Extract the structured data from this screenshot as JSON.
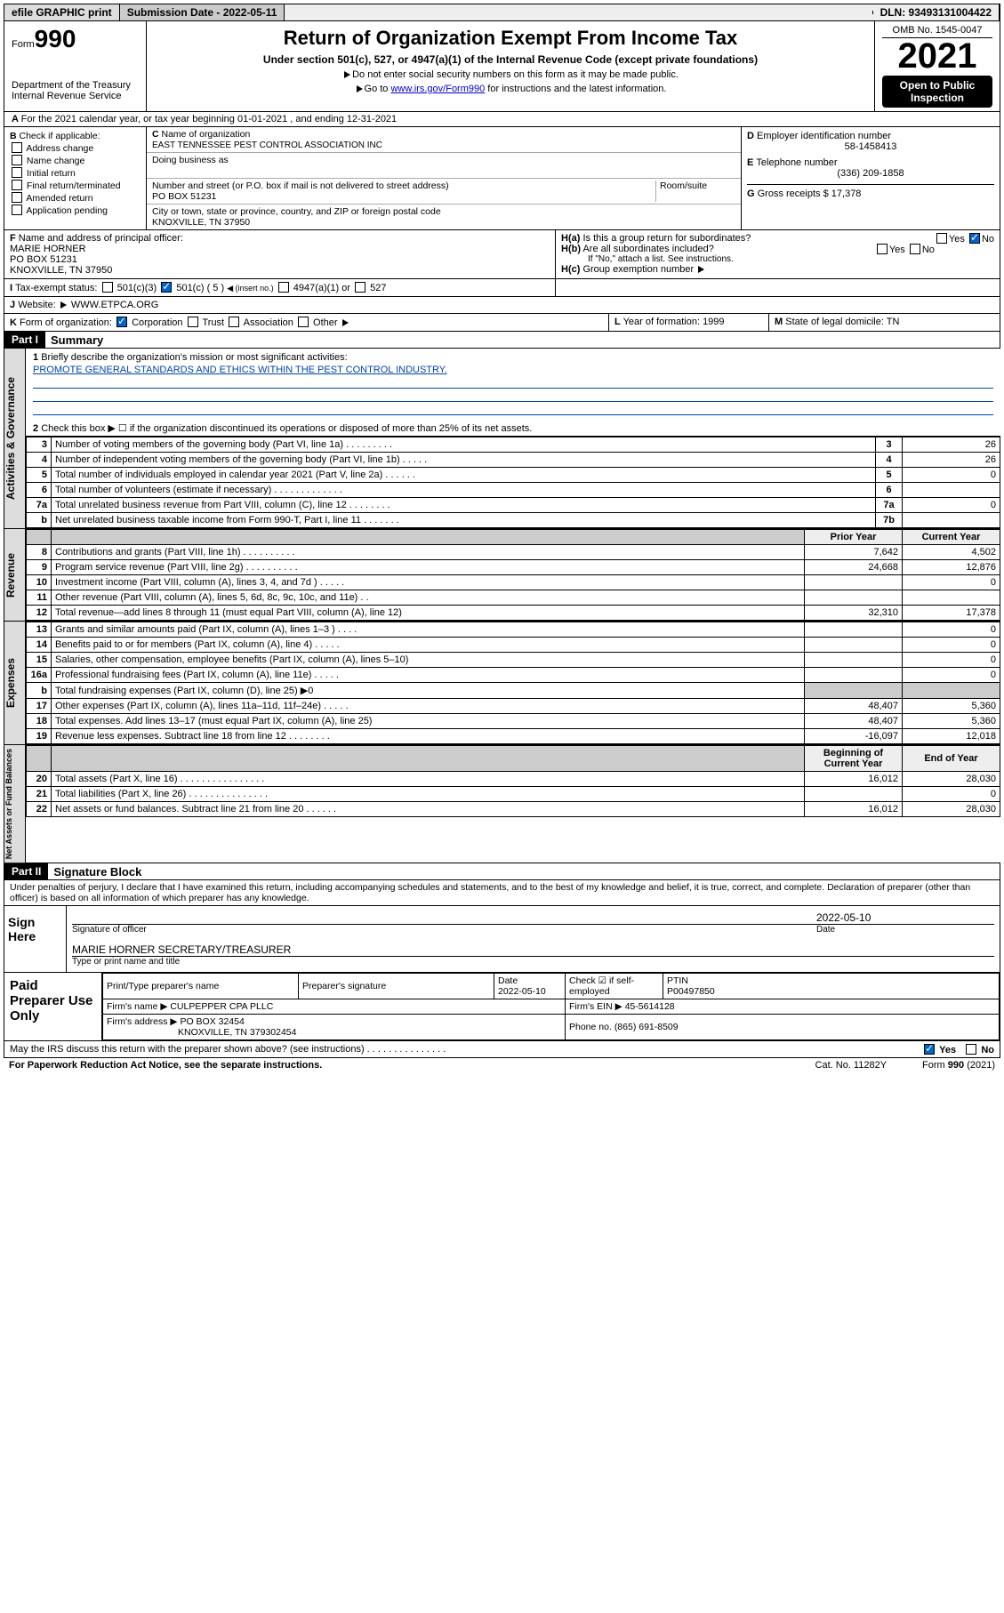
{
  "header": {
    "efile": "efile GRAPHIC print",
    "subm": "Submission Date - 2022-05-11",
    "dln": "DLN: 93493131004422"
  },
  "top": {
    "form_word": "Form",
    "form_no": "990",
    "title": "Return of Organization Exempt From Income Tax",
    "sub": "Under section 501(c), 527, or 4947(a)(1) of the Internal Revenue Code (except private foundations)",
    "hint1": "Do not enter social security numbers on this form as it may be made public.",
    "hint2a": "Go to ",
    "hint2_link": "www.irs.gov/Form990",
    "hint2b": " for instructions and the latest information.",
    "dept": "Department of the Treasury",
    "irs": "Internal Revenue Service",
    "omb": "OMB No. 1545-0047",
    "year": "2021",
    "open": "Open to Public Inspection"
  },
  "A": {
    "text": "For the 2021 calendar year, or tax year beginning 01-01-2021   , and ending 12-31-2021"
  },
  "B": {
    "hdr": "Check if applicable:",
    "opts": [
      "Address change",
      "Name change",
      "Initial return",
      "Final return/terminated",
      "Amended return",
      "Application pending"
    ]
  },
  "C": {
    "name_lbl": "Name of organization",
    "name": "EAST TENNESSEE PEST CONTROL ASSOCIATION INC",
    "dba_lbl": "Doing business as",
    "street_lbl": "Number and street (or P.O. box if mail is not delivered to street address)",
    "room_lbl": "Room/suite",
    "street": "PO BOX 51231",
    "city_lbl": "City or town, state or province, country, and ZIP or foreign postal code",
    "city": "KNOXVILLE, TN  37950"
  },
  "D": {
    "lbl": "Employer identification number",
    "val": "58-1458413"
  },
  "E": {
    "lbl": "Telephone number",
    "val": "(336) 209-1858"
  },
  "G": {
    "lbl": "Gross receipts $",
    "val": "17,378"
  },
  "F": {
    "lbl": "Name and address of principal officer:",
    "name": "MARIE HORNER",
    "street": "PO BOX 51231",
    "city": "KNOXVILLE, TN  37950"
  },
  "H": {
    "a": "Is this a group return for subordinates?",
    "b": "Are all subordinates included?",
    "b_hint": "If \"No,\" attach a list. See instructions.",
    "c": "Group exemption number"
  },
  "I": {
    "lbl": "Tax-exempt status:",
    "o1": "501(c)(3)",
    "o2": "501(c) ( 5 )",
    "o2_hint": "(insert no.)",
    "o3": "4947(a)(1) or",
    "o4": "527"
  },
  "J": {
    "lbl": "Website:",
    "val": "WWW.ETPCA.ORG"
  },
  "K": {
    "lbl": "Form of organization:",
    "opts": [
      "Corporation",
      "Trust",
      "Association",
      "Other"
    ]
  },
  "L": {
    "lbl": "Year of formation:",
    "val": "1999"
  },
  "M": {
    "lbl": "State of legal domicile:",
    "val": "TN"
  },
  "part1": {
    "hdr": "Part I",
    "title": "Summary",
    "q1": "Briefly describe the organization's mission or most significant activities:",
    "q1_ans": "PROMOTE GENERAL STANDARDS AND ETHICS WITHIN THE PEST CONTROL INDUSTRY.",
    "q2": "Check this box ▶ ☐ if the organization discontinued its operations or disposed of more than 25% of its net assets.",
    "strip_ag": "Activities & Governance",
    "strip_rev": "Revenue",
    "strip_exp": "Expenses",
    "strip_net": "Net Assets or Fund Balances",
    "hdr_prior": "Prior Year",
    "hdr_curr": "Current Year",
    "hdr_beg": "Beginning of Current Year",
    "hdr_end": "End of Year",
    "rows_ag": [
      {
        "n": "3",
        "t": "Number of voting members of the governing body (Part VI, line 1a)  .  .  .  .  .  .  .  .  .",
        "box": "3",
        "v": "26"
      },
      {
        "n": "4",
        "t": "Number of independent voting members of the governing body (Part VI, line 1b)  .  .  .  .  .",
        "box": "4",
        "v": "26"
      },
      {
        "n": "5",
        "t": "Total number of individuals employed in calendar year 2021 (Part V, line 2a)  .  .  .  .  .  .",
        "box": "5",
        "v": "0"
      },
      {
        "n": "6",
        "t": "Total number of volunteers (estimate if necessary)  .  .  .  .  .  .  .  .  .  .  .  .  .",
        "box": "6",
        "v": ""
      },
      {
        "n": "7a",
        "t": "Total unrelated business revenue from Part VIII, column (C), line 12  .  .  .  .  .  .  .  .",
        "box": "7a",
        "v": "0"
      },
      {
        "n": "b",
        "t": "Net unrelated business taxable income from Form 990-T, Part I, line 11  .  .  .  .  .  .  .",
        "box": "7b",
        "v": ""
      }
    ],
    "rows_rev": [
      {
        "n": "8",
        "t": "Contributions and grants (Part VIII, line 1h)  .  .  .  .  .  .  .  .  .  .",
        "p": "7,642",
        "c": "4,502"
      },
      {
        "n": "9",
        "t": "Program service revenue (Part VIII, line 2g)  .  .  .  .  .  .  .  .  .  .",
        "p": "24,668",
        "c": "12,876"
      },
      {
        "n": "10",
        "t": "Investment income (Part VIII, column (A), lines 3, 4, and 7d )  .  .  .  .  .",
        "p": "",
        "c": "0"
      },
      {
        "n": "11",
        "t": "Other revenue (Part VIII, column (A), lines 5, 6d, 8c, 9c, 10c, and 11e)  .  .",
        "p": "",
        "c": ""
      },
      {
        "n": "12",
        "t": "Total revenue—add lines 8 through 11 (must equal Part VIII, column (A), line 12)",
        "p": "32,310",
        "c": "17,378"
      }
    ],
    "rows_exp": [
      {
        "n": "13",
        "t": "Grants and similar amounts paid (Part IX, column (A), lines 1–3 )  .  .  .  .",
        "p": "",
        "c": "0"
      },
      {
        "n": "14",
        "t": "Benefits paid to or for members (Part IX, column (A), line 4)  .  .  .  .  .",
        "p": "",
        "c": "0"
      },
      {
        "n": "15",
        "t": "Salaries, other compensation, employee benefits (Part IX, column (A), lines 5–10)",
        "p": "",
        "c": "0"
      },
      {
        "n": "16a",
        "t": "Professional fundraising fees (Part IX, column (A), line 11e)  .  .  .  .  .",
        "p": "",
        "c": "0"
      },
      {
        "n": "b",
        "t": "Total fundraising expenses (Part IX, column (D), line 25) ▶0",
        "p": "SHADE",
        "c": "SHADE"
      },
      {
        "n": "17",
        "t": "Other expenses (Part IX, column (A), lines 11a–11d, 11f–24e)  .  .  .  .  .",
        "p": "48,407",
        "c": "5,360"
      },
      {
        "n": "18",
        "t": "Total expenses. Add lines 13–17 (must equal Part IX, column (A), line 25)",
        "p": "48,407",
        "c": "5,360"
      },
      {
        "n": "19",
        "t": "Revenue less expenses. Subtract line 18 from line 12  .  .  .  .  .  .  .  .",
        "p": "-16,097",
        "c": "12,018"
      }
    ],
    "rows_net": [
      {
        "n": "20",
        "t": "Total assets (Part X, line 16)  .  .  .  .  .  .  .  .  .  .  .  .  .  .  .  .",
        "p": "16,012",
        "c": "28,030"
      },
      {
        "n": "21",
        "t": "Total liabilities (Part X, line 26)  .  .  .  .  .  .  .  .  .  .  .  .  .  .  .",
        "p": "",
        "c": "0"
      },
      {
        "n": "22",
        "t": "Net assets or fund balances. Subtract line 21 from line 20  .  .  .  .  .  .",
        "p": "16,012",
        "c": "28,030"
      }
    ]
  },
  "part2": {
    "hdr": "Part II",
    "title": "Signature Block",
    "decl": "Under penalties of perjury, I declare that I have examined this return, including accompanying schedules and statements, and to the best of my knowledge and belief, it is true, correct, and complete. Declaration of preparer (other than officer) is based on all information of which preparer has any knowledge.",
    "sign_here": "Sign Here",
    "sig_officer": "Signature of officer",
    "sig_date": "2022-05-10",
    "date_lbl": "Date",
    "typed": "MARIE HORNER  SECRETARY/TREASURER",
    "typed_lbl": "Type or print name and title",
    "paid": "Paid Preparer Use Only",
    "p_name_lbl": "Print/Type preparer's name",
    "p_sig_lbl": "Preparer's signature",
    "p_date_lbl": "Date",
    "p_date": "2022-05-10",
    "p_check_lbl": "Check ☑ if self-employed",
    "p_ptin_lbl": "PTIN",
    "p_ptin": "P00497850",
    "firm_name_lbl": "Firm's name  ▶",
    "firm_name": "CULPEPPER CPA PLLC",
    "firm_ein_lbl": "Firm's EIN ▶",
    "firm_ein": "45-5614128",
    "firm_addr_lbl": "Firm's address ▶",
    "firm_addr": "PO BOX 32454",
    "firm_addr2": "KNOXVILLE, TN  379302454",
    "phone_lbl": "Phone no.",
    "phone": "(865) 691-8509",
    "discuss": "May the IRS discuss this return with the preparer shown above? (see instructions)  .  .  .  .  .  .  .  .  .  .  .  .  .  .  .",
    "yes": "Yes",
    "no": "No"
  },
  "footer": {
    "pra": "For Paperwork Reduction Act Notice, see the separate instructions.",
    "cat": "Cat. No. 11282Y",
    "form": "Form 990 (2021)"
  }
}
